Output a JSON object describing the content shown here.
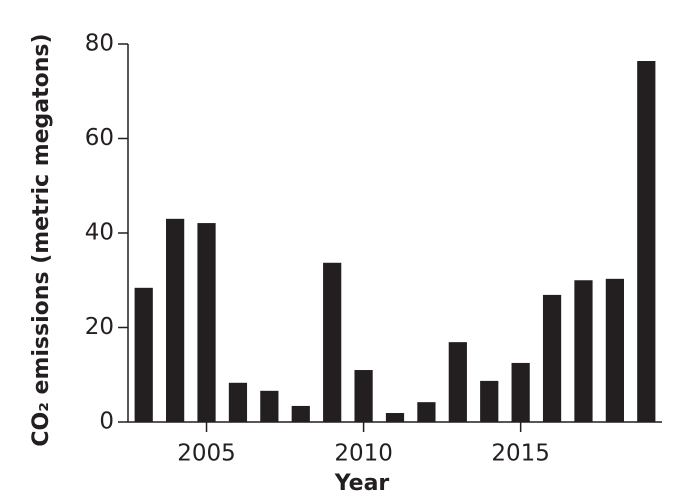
{
  "chart_data": {
    "type": "bar",
    "xlabel": "Year",
    "ylabel": "CO₂ emissions (metric megatons)",
    "x": [
      2003,
      2004,
      2005,
      2006,
      2007,
      2008,
      2009,
      2010,
      2011,
      2012,
      2013,
      2014,
      2015,
      2016,
      2017,
      2018,
      2019
    ],
    "values": [
      28.4,
      43.0,
      42.1,
      8.3,
      6.6,
      3.4,
      33.7,
      11.0,
      1.9,
      4.2,
      16.9,
      8.7,
      12.5,
      26.9,
      30.0,
      30.3,
      76.4
    ],
    "color": "#231f20",
    "xlim": [
      2002.5,
      2019.5
    ],
    "xticks": [
      2005,
      2010,
      2015
    ],
    "ylim": [
      0,
      80
    ],
    "yticks": [
      0,
      20,
      40,
      60,
      80
    ]
  }
}
